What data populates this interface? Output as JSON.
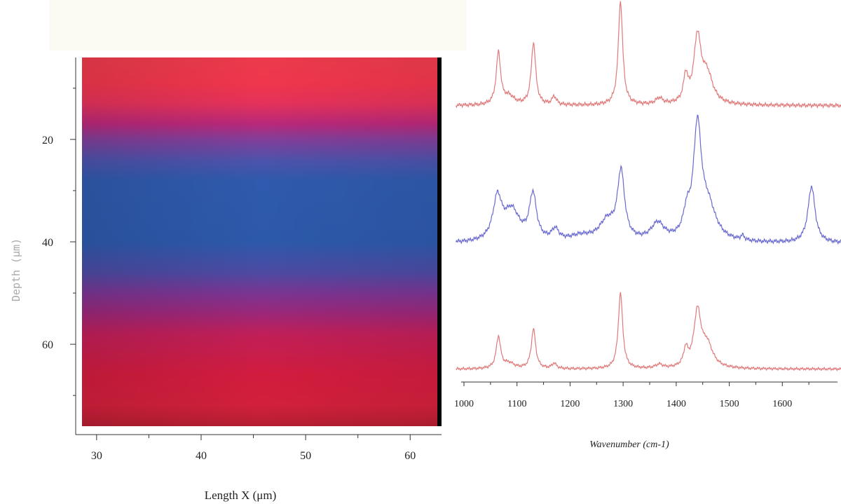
{
  "chart_data": [
    {
      "type": "heatmap",
      "title": "",
      "xlabel": "Length X (μm)",
      "ylabel": "Depth (μm)",
      "xlim": [
        28,
        63
      ],
      "ylim": [
        76,
        4
      ],
      "xticks": [
        "30",
        "40",
        "50",
        "60"
      ],
      "yticks": [
        "20",
        "40",
        "60"
      ],
      "depth_profile": [
        {
          "depth": 5,
          "color": "#ec3a4c"
        },
        {
          "depth": 9,
          "color": "#f0364c"
        },
        {
          "depth": 13,
          "color": "#e4325a"
        },
        {
          "depth": 17,
          "color": "#b8287a"
        },
        {
          "depth": 20,
          "color": "#823e99"
        },
        {
          "depth": 24,
          "color": "#4e52aa"
        },
        {
          "depth": 28,
          "color": "#2f5aad"
        },
        {
          "depth": 40,
          "color": "#2d59ab"
        },
        {
          "depth": 46,
          "color": "#4d4aa2"
        },
        {
          "depth": 50,
          "color": "#7a3592"
        },
        {
          "depth": 54,
          "color": "#9c2778"
        },
        {
          "depth": 58,
          "color": "#c01f58"
        },
        {
          "depth": 66,
          "color": "#d21c3e"
        },
        {
          "depth": 72,
          "color": "#d1203c"
        },
        {
          "depth": 76,
          "color": "#b51e32"
        }
      ]
    },
    {
      "type": "line",
      "title": "",
      "xlabel": "Wavenumber (cm-1)",
      "ylabel": "",
      "xlim": [
        985,
        1715
      ],
      "xticks": [
        "1000",
        "1100",
        "1200",
        "1300",
        "1400",
        "1500",
        "1600"
      ],
      "series": [
        {
          "color": "#e07a7a",
          "baseline": 0.05,
          "peaks": [
            {
              "x": 1065,
              "height": 0.5,
              "width": 5
            },
            {
              "x": 1085,
              "height": 0.08,
              "width": 12
            },
            {
              "x": 1131,
              "height": 0.6,
              "width": 5
            },
            {
              "x": 1170,
              "height": 0.08,
              "width": 5
            },
            {
              "x": 1295,
              "height": 1.0,
              "width": 5
            },
            {
              "x": 1368,
              "height": 0.06,
              "width": 8
            },
            {
              "x": 1418,
              "height": 0.25,
              "width": 5
            },
            {
              "x": 1440,
              "height": 0.62,
              "width": 8
            },
            {
              "x": 1458,
              "height": 0.28,
              "width": 13
            }
          ]
        },
        {
          "color": "#6a6ad0",
          "baseline": 0.05,
          "peaks": [
            {
              "x": 1063,
              "height": 0.38,
              "width": 10
            },
            {
              "x": 1090,
              "height": 0.28,
              "width": 18
            },
            {
              "x": 1130,
              "height": 0.42,
              "width": 8
            },
            {
              "x": 1172,
              "height": 0.1,
              "width": 8
            },
            {
              "x": 1220,
              "height": 0.05,
              "width": 25
            },
            {
              "x": 1270,
              "height": 0.18,
              "width": 18
            },
            {
              "x": 1296,
              "height": 0.62,
              "width": 8
            },
            {
              "x": 1365,
              "height": 0.16,
              "width": 15
            },
            {
              "x": 1420,
              "height": 0.2,
              "width": 8
            },
            {
              "x": 1440,
              "height": 1.0,
              "width": 9
            },
            {
              "x": 1460,
              "height": 0.3,
              "width": 18
            },
            {
              "x": 1525,
              "height": 0.04,
              "width": 4
            },
            {
              "x": 1655,
              "height": 0.52,
              "width": 8
            }
          ]
        },
        {
          "color": "#e07a7a",
          "baseline": 0.05,
          "peaks": [
            {
              "x": 1065,
              "height": 0.42,
              "width": 5
            },
            {
              "x": 1085,
              "height": 0.07,
              "width": 12
            },
            {
              "x": 1131,
              "height": 0.52,
              "width": 5
            },
            {
              "x": 1170,
              "height": 0.07,
              "width": 5
            },
            {
              "x": 1295,
              "height": 1.0,
              "width": 5
            },
            {
              "x": 1368,
              "height": 0.05,
              "width": 8
            },
            {
              "x": 1418,
              "height": 0.22,
              "width": 5
            },
            {
              "x": 1440,
              "height": 0.72,
              "width": 8
            },
            {
              "x": 1458,
              "height": 0.3,
              "width": 13
            }
          ]
        }
      ]
    }
  ]
}
